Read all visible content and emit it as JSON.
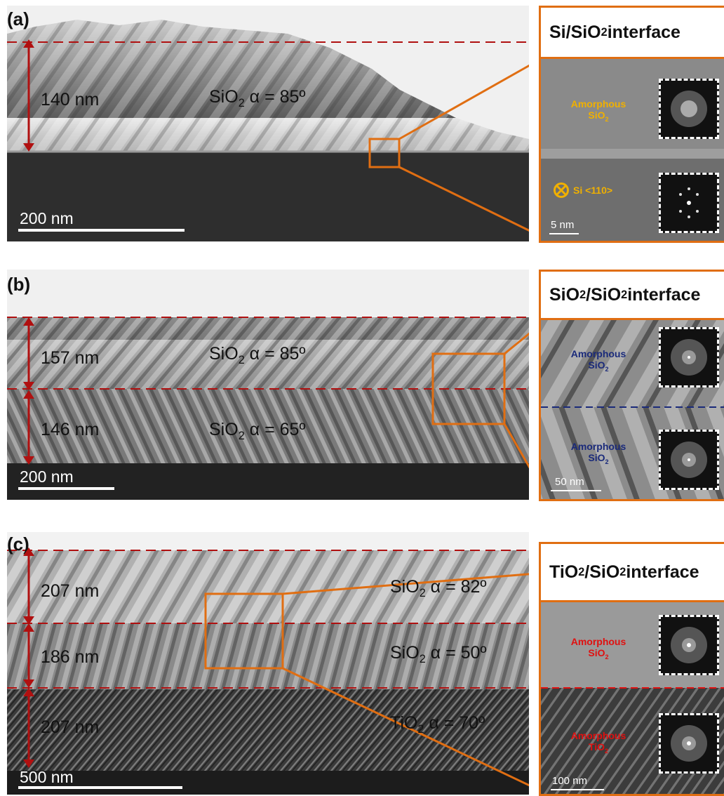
{
  "panels": {
    "a": {
      "letter": "(a)",
      "layers": [
        {
          "thickness": "140 nm",
          "material": "SiO",
          "sub": "2",
          "alpha": " α = 85º"
        }
      ],
      "scale_bar": "200 nm",
      "inset": {
        "title_main": "Si/SiO",
        "title_sub": "2",
        "title_end": " interface",
        "top_label_1": "Amorphous",
        "top_label_2": "SiO",
        "top_label_sub": "2",
        "bottom_label": "Si <110>",
        "scale_bar": "5 nm",
        "label_color": "#f0b000"
      }
    },
    "b": {
      "letter": "(b)",
      "layers": [
        {
          "thickness": "157 nm",
          "material": "SiO",
          "sub": "2",
          "alpha": " α = 85º"
        },
        {
          "thickness": "146 nm",
          "material": "SiO",
          "sub": "2",
          "alpha": " α = 65º"
        }
      ],
      "scale_bar": "200 nm",
      "inset": {
        "title_main": "SiO",
        "title_sub": "2",
        "title_mid": "/SiO",
        "title_sub2": "2",
        "title_end": " interface",
        "top_label_1": "Amorphous",
        "top_label_2": "SiO",
        "top_label_sub": "2",
        "bottom_label_1": "Amorphous",
        "bottom_label_2": "SiO",
        "bottom_label_sub": "2",
        "scale_bar": "50 nm",
        "label_color": "#1a2a7a"
      }
    },
    "c": {
      "letter": "(c)",
      "layers": [
        {
          "thickness": "207 nm",
          "material": "SiO",
          "sub": "2",
          "alpha": " α = 82º"
        },
        {
          "thickness": "186 nm",
          "material": "SiO",
          "sub": "2",
          "alpha": " α = 50º"
        },
        {
          "thickness": "207 nm",
          "material": "TiO",
          "sub": "2",
          "alpha": " α = 70º"
        }
      ],
      "scale_bar": "500 nm",
      "inset": {
        "title_main": "TiO",
        "title_sub": "2",
        "title_mid": "/SiO",
        "title_sub2": "2",
        "title_end": " interface",
        "top_label_1": "Amorphous",
        "top_label_2": "SiO",
        "top_label_sub": "2",
        "bottom_label_1": "Amorphous",
        "bottom_label_2": "TiO",
        "bottom_label_sub": "2",
        "scale_bar": "100 nm",
        "label_color": "#e01010"
      }
    }
  },
  "colors": {
    "accent_orange": "#e06e12",
    "dashed_red": "#b01010",
    "arrow_red": "#b01010"
  }
}
